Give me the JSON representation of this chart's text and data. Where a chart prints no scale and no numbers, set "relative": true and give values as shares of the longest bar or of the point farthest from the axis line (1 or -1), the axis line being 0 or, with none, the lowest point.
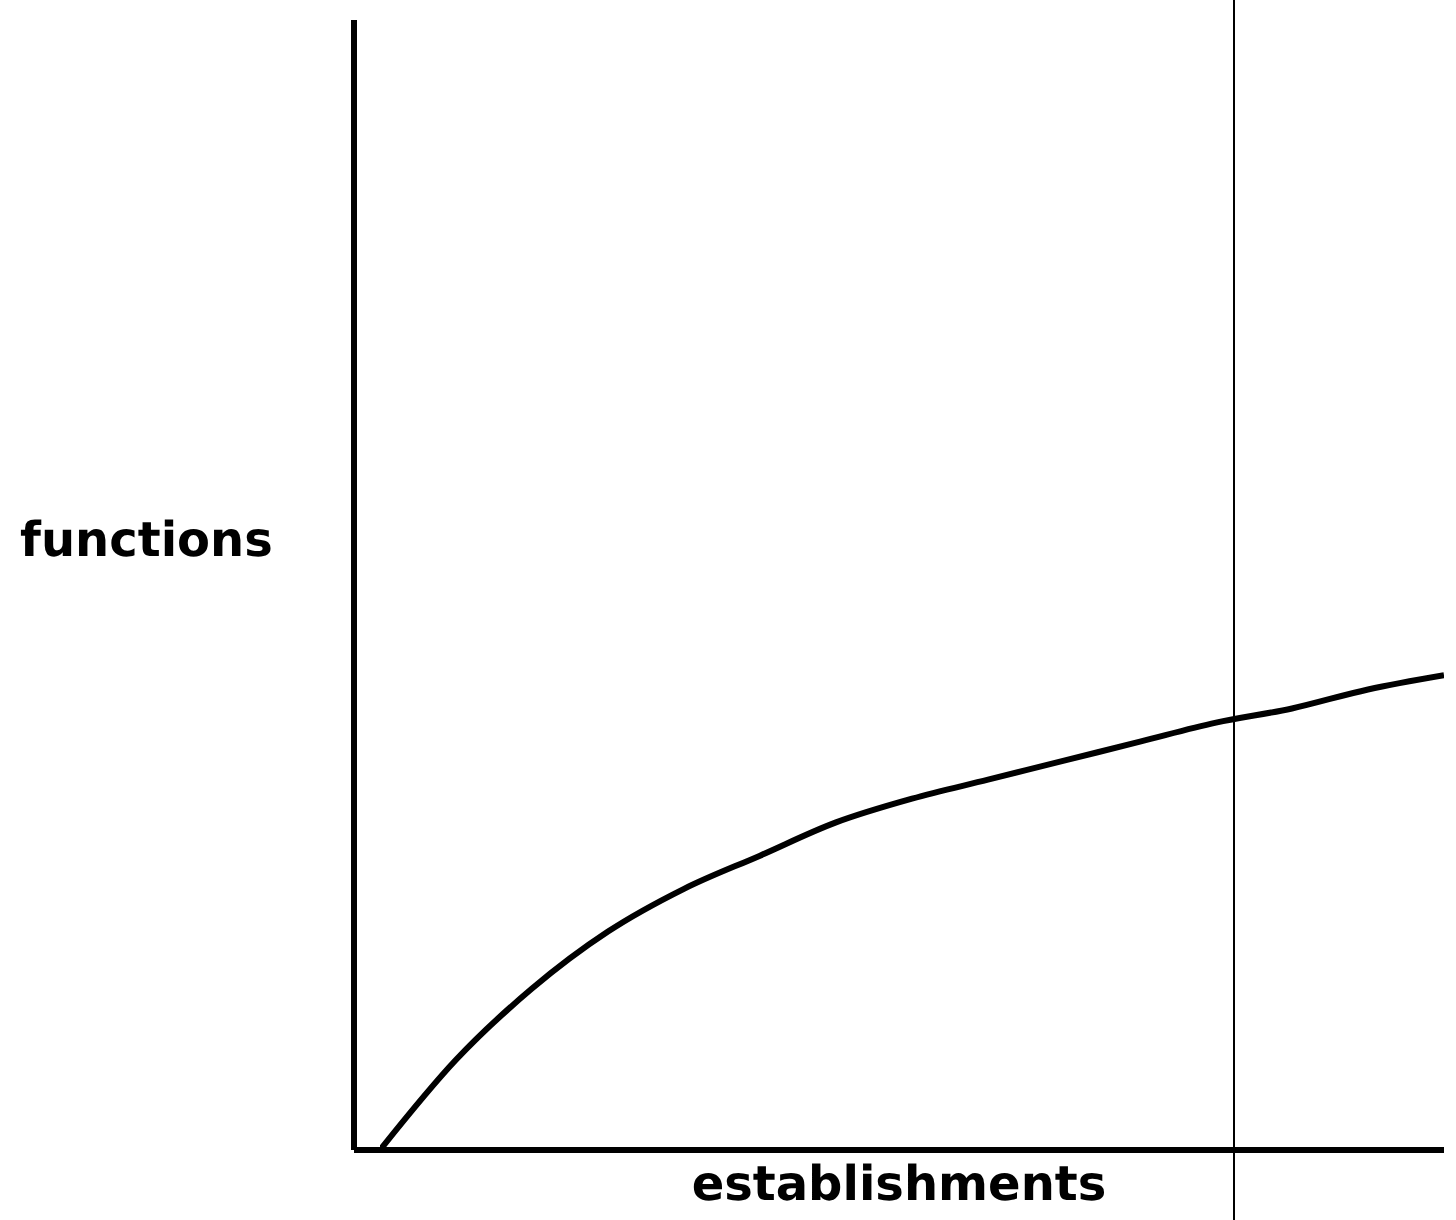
{
  "chart_data": {
    "type": "line",
    "relative": true,
    "xlabel": "establishments",
    "ylabel": "functions",
    "categories": [
      null,
      null,
      null,
      null,
      null,
      null,
      null,
      null,
      null,
      null,
      null,
      null,
      null,
      null,
      null
    ],
    "series": [
      {
        "color": "#000000",
        "values": [
          0,
          0.19,
          0.34,
          0.46,
          0.55,
          0.62,
          0.69,
          0.74,
          0.78,
          0.82,
          0.86,
          0.9,
          0.93,
          0.97,
          1
        ]
      }
    ],
    "marker": "none",
    "grid": false,
    "legend": false
  }
}
